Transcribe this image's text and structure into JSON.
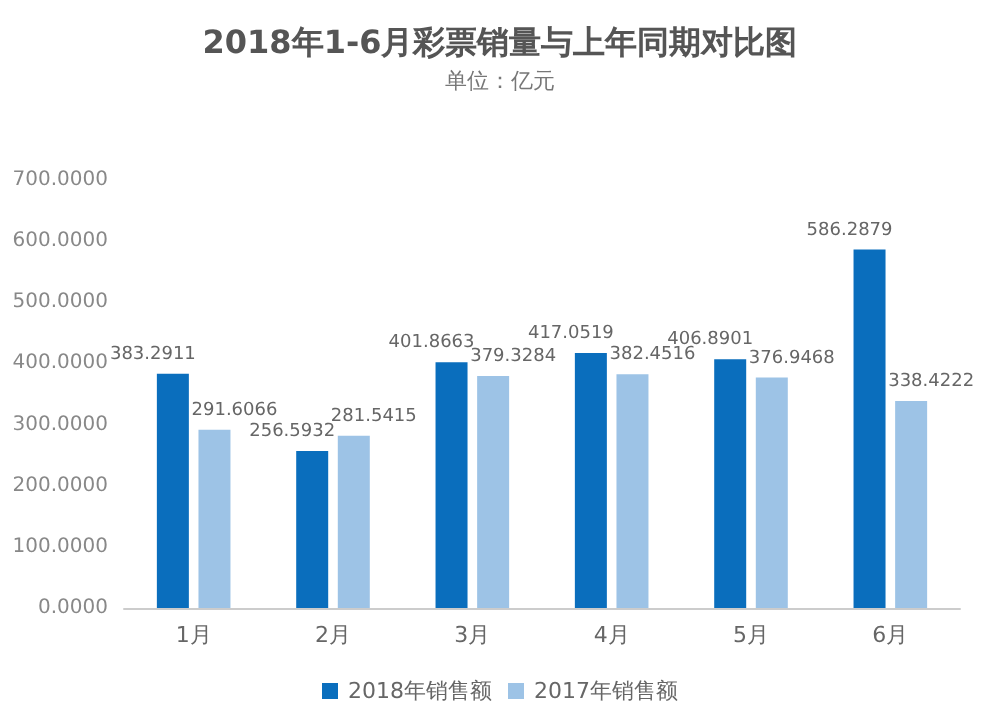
{
  "chart_data": {
    "type": "bar",
    "title": "2018年1-6月彩票销量与上年同期对比图",
    "subtitle": "单位：亿元",
    "categories": [
      "1月",
      "2月",
      "3月",
      "4月",
      "5月",
      "6月"
    ],
    "series": [
      {
        "name": "2018年销售额",
        "color": "#0a6ebd",
        "values": [
          383.2911,
          256.5932,
          401.8663,
          417.0519,
          406.8901,
          586.2879
        ]
      },
      {
        "name": "2017年销售额",
        "color": "#9dc3e6",
        "values": [
          291.6066,
          281.5415,
          379.3284,
          382.4516,
          376.9468,
          338.4222
        ]
      }
    ],
    "ylim": [
      0,
      700
    ],
    "yticks": [
      {
        "value": 0,
        "label": "0.0000"
      },
      {
        "value": 100,
        "label": "100.0000"
      },
      {
        "value": 200,
        "label": "200.0000"
      },
      {
        "value": 300,
        "label": "300.0000"
      },
      {
        "value": 400,
        "label": "400.0000"
      },
      {
        "value": 500,
        "label": "500.0000"
      },
      {
        "value": 600,
        "label": "600.0000"
      },
      {
        "value": 700,
        "label": "700.0000"
      }
    ],
    "data_labels": true,
    "legend": "bottom"
  }
}
